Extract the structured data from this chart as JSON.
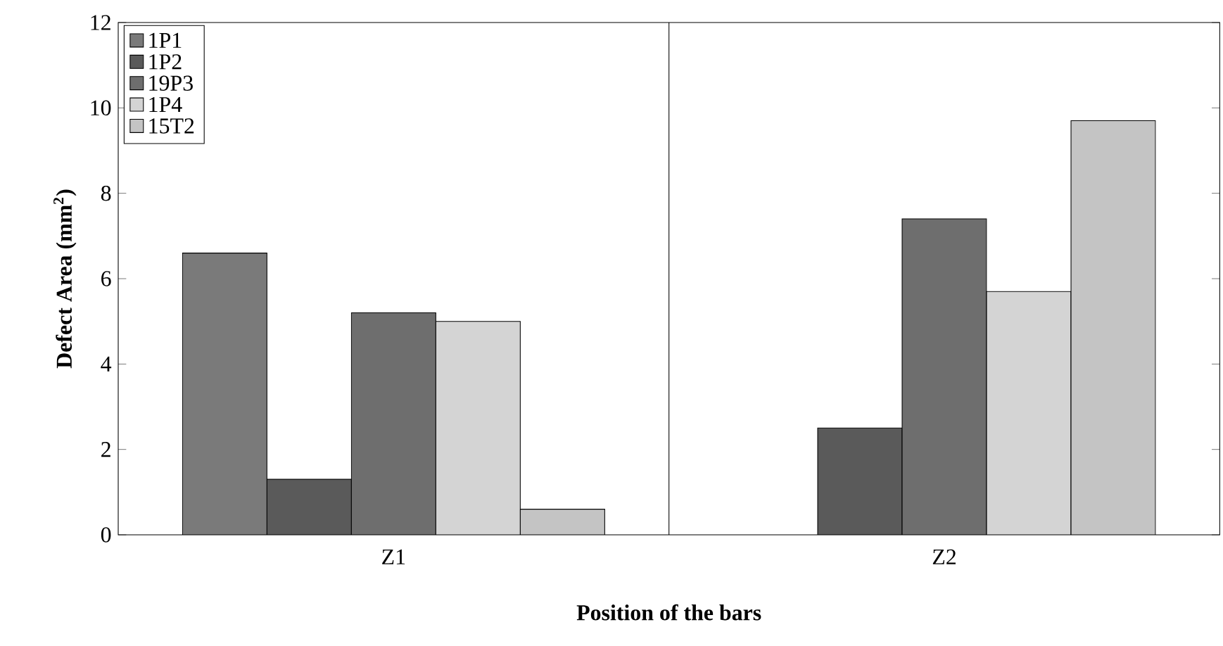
{
  "chart_data": {
    "type": "bar",
    "xlabel": "Position of the bars",
    "ylabel": "Defect Area (mm$^{2}$)",
    "categories": [
      "Z1",
      "Z2"
    ],
    "series": [
      {
        "name": "1P1",
        "color": "#7a7a7a",
        "values": [
          6.6,
          null
        ]
      },
      {
        "name": "1P2",
        "color": "#5a5a5a",
        "values": [
          1.3,
          2.5
        ]
      },
      {
        "name": "19P3",
        "color": "#6e6e6e",
        "values": [
          5.2,
          7.4
        ]
      },
      {
        "name": "1P4",
        "color": "#d4d4d4",
        "values": [
          5.0,
          5.7
        ]
      },
      {
        "name": "15T2",
        "color": "#c4c4c4",
        "values": [
          0.6,
          9.7
        ]
      }
    ],
    "ylim": [
      0,
      12
    ],
    "yticks": [
      0,
      2,
      4,
      6,
      8,
      10,
      12
    ],
    "grid": "x",
    "legend": "top left"
  }
}
